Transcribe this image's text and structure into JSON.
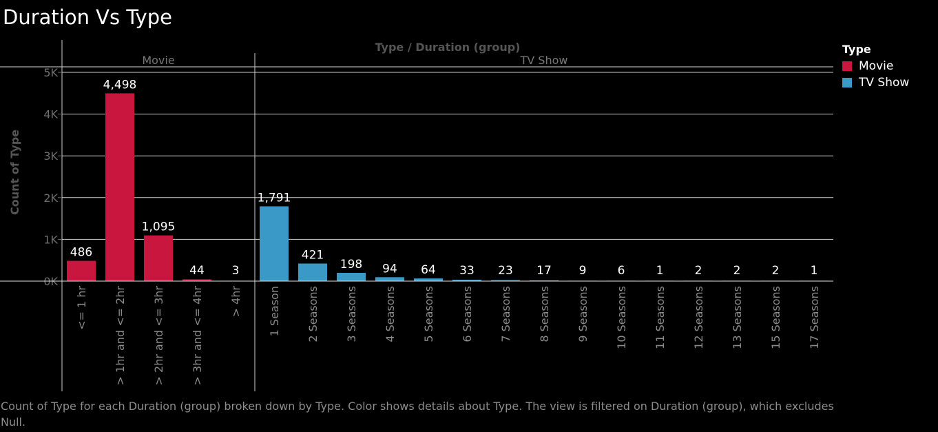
{
  "chart_data": {
    "type": "bar",
    "title": "Duration Vs Type",
    "header": "Type  /  Duration (group)",
    "ylabel": "Count of Type",
    "ylim": [
      0,
      5000
    ],
    "yticks": [
      {
        "value": 0,
        "label": "0K"
      },
      {
        "value": 1000,
        "label": "1K"
      },
      {
        "value": 2000,
        "label": "2K"
      },
      {
        "value": 3000,
        "label": "3K"
      },
      {
        "value": 4000,
        "label": "4K"
      },
      {
        "value": 5000,
        "label": "5K"
      }
    ],
    "legend": {
      "title": "Type",
      "placement": "right"
    },
    "grid": true,
    "panes": [
      {
        "name": "Movie",
        "color": "#c8163e",
        "categories": [
          "<= 1 hr",
          "> 1hr and <= 2hr",
          "> 2hr and <= 3hr",
          "> 3hr and <= 4hr",
          "> 4hr"
        ],
        "values": [
          486,
          4498,
          1095,
          44,
          3
        ],
        "labels": [
          "486",
          "4,498",
          "1,095",
          "44",
          "3"
        ]
      },
      {
        "name": "TV Show",
        "color": "#3b99c8",
        "categories": [
          "1 Season",
          "2 Seasons",
          "3 Seasons",
          "4 Seasons",
          "5 Seasons",
          "6 Seasons",
          "7 Seasons",
          "8 Seasons",
          "9 Seasons",
          "10 Seasons",
          "11 Seasons",
          "12 Seasons",
          "13 Seasons",
          "15 Seasons",
          "17 Seasons"
        ],
        "values": [
          1791,
          421,
          198,
          94,
          64,
          33,
          23,
          17,
          9,
          6,
          1,
          2,
          2,
          2,
          1
        ],
        "labels": [
          "1,791",
          "421",
          "198",
          "94",
          "64",
          "33",
          "23",
          "17",
          "9",
          "6",
          "1",
          "2",
          "2",
          "2",
          "1"
        ]
      }
    ]
  },
  "caption": "Count of Type for each Duration (group) broken down by Type.  Color shows details about Type. The view is filtered on Duration (group), which excludes Null."
}
